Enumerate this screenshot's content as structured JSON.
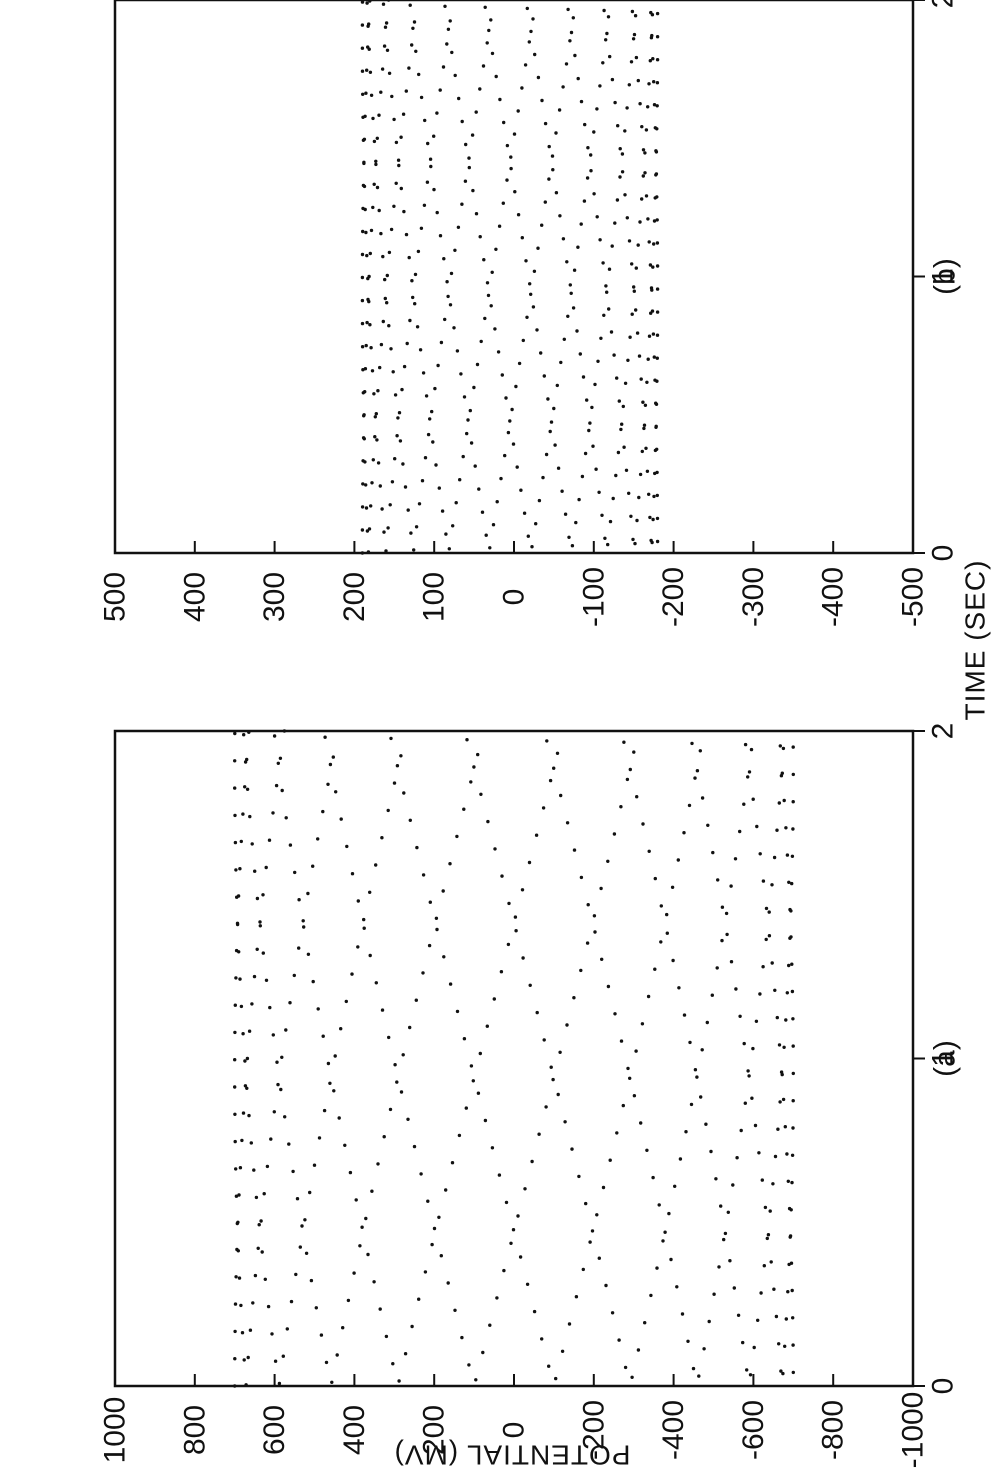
{
  "figure": {
    "xlabel": "TIME (SEC)",
    "ylabel": "POTENTIAL (MV)",
    "colors": {
      "ink": "#111111",
      "background": "#ffffff"
    }
  },
  "chart_data": [
    {
      "type": "scatter",
      "panel_label": "(a)",
      "title": "",
      "xlabel": "TIME (SEC)",
      "ylabel": "POTENTIAL (MV)",
      "xlim": [
        0,
        2
      ],
      "ylim": [
        -1000,
        1000
      ],
      "x_ticks": [
        0,
        1,
        2
      ],
      "x_tick_labels": [
        "0",
        "1",
        "2"
      ],
      "y_ticks": [
        1000,
        800,
        600,
        400,
        200,
        0,
        -200,
        -400,
        -600,
        -800,
        -1000
      ],
      "y_tick_labels": [
        "1000",
        "800",
        "600",
        "400",
        "200",
        "0",
        "-200",
        "-400",
        "-600",
        "-800",
        "-1000"
      ],
      "grid": false,
      "pattern": {
        "description": "dense sampled oscillation between about +700 and -700",
        "amplitude": 700,
        "period": 0.083,
        "cycles": 24,
        "samples_per_cycle": 22,
        "t_start": 0.0,
        "t_end": 2.0
      }
    },
    {
      "type": "scatter",
      "panel_label": "(b)",
      "title": "",
      "xlabel": "TIME (SEC)",
      "ylabel": "POTENTIAL (MV)",
      "xlim": [
        0,
        2
      ],
      "ylim": [
        -500,
        500
      ],
      "x_ticks": [
        0,
        1,
        2
      ],
      "x_tick_labels": [
        "0",
        "1",
        "2"
      ],
      "y_ticks": [
        500,
        400,
        300,
        200,
        100,
        0,
        -100,
        -200,
        -300,
        -400,
        -500
      ],
      "y_tick_labels": [
        "500",
        "400",
        "300",
        "200",
        "100",
        "0",
        "-100",
        "-200",
        "-300",
        "-400",
        "-500"
      ],
      "grid": false,
      "pattern": {
        "description": "dense sampled oscillation between about +190 and -180",
        "amplitude_max": 190,
        "amplitude_min": -180,
        "period": 0.083,
        "cycles": 24,
        "samples_per_cycle": 22,
        "t_start": 0.0,
        "t_end": 2.0
      }
    }
  ]
}
